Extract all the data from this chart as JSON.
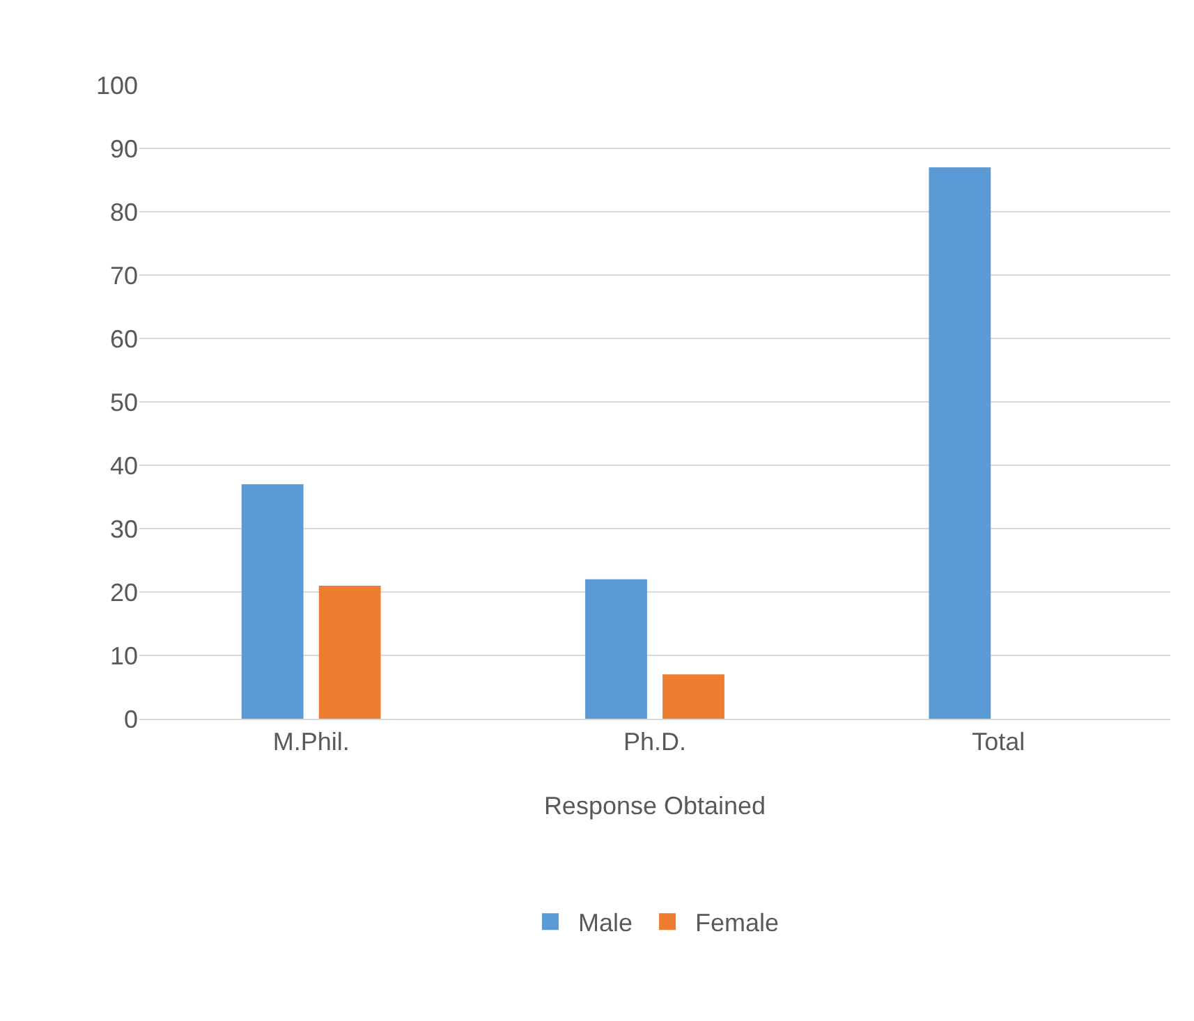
{
  "chart_data": {
    "type": "bar",
    "categories": [
      "M.Phil.",
      "Ph.D.",
      "Total"
    ],
    "series": [
      {
        "name": "Male",
        "color": "#5b9bd5",
        "values": [
          37,
          22,
          87
        ]
      },
      {
        "name": "Female",
        "color": "#ed7d31",
        "values": [
          21,
          7,
          null
        ]
      }
    ],
    "xlabel": "Response Obtained",
    "ylim": [
      0,
      100
    ],
    "yticks": [
      0,
      10,
      20,
      30,
      40,
      50,
      60,
      70,
      80,
      90,
      100
    ],
    "grid": "y",
    "legend": "bottom"
  }
}
